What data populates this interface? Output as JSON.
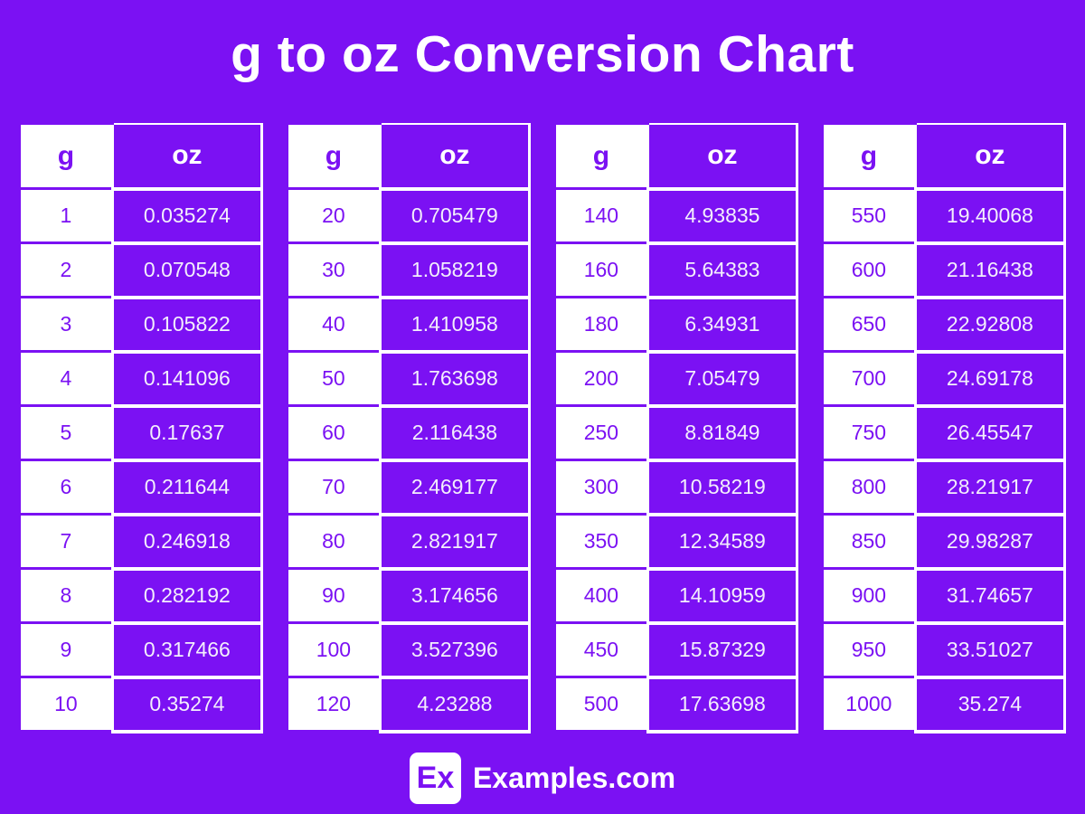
{
  "page": {
    "title": "g to oz Conversion Chart",
    "colors": {
      "purple": "#7b11f3",
      "white": "#ffffff",
      "value_text": "#f3eefc"
    }
  },
  "footer": {
    "logo_text": "Ex",
    "brand": "Examples.com"
  },
  "chart_data": {
    "type": "table",
    "title": "g to oz Conversion Chart",
    "unit_from": "g",
    "unit_to": "oz",
    "columns": [
      "g",
      "oz"
    ],
    "tables": [
      {
        "rows": [
          [
            "1",
            "0.035274"
          ],
          [
            "2",
            "0.070548"
          ],
          [
            "3",
            "0.105822"
          ],
          [
            "4",
            "0.141096"
          ],
          [
            "5",
            "0.17637"
          ],
          [
            "6",
            "0.211644"
          ],
          [
            "7",
            "0.246918"
          ],
          [
            "8",
            "0.282192"
          ],
          [
            "9",
            "0.317466"
          ],
          [
            "10",
            "0.35274"
          ]
        ]
      },
      {
        "rows": [
          [
            "20",
            "0.705479"
          ],
          [
            "30",
            "1.058219"
          ],
          [
            "40",
            "1.410958"
          ],
          [
            "50",
            "1.763698"
          ],
          [
            "60",
            "2.116438"
          ],
          [
            "70",
            "2.469177"
          ],
          [
            "80",
            "2.821917"
          ],
          [
            "90",
            "3.174656"
          ],
          [
            "100",
            "3.527396"
          ],
          [
            "120",
            "4.23288"
          ]
        ]
      },
      {
        "rows": [
          [
            "140",
            "4.93835"
          ],
          [
            "160",
            "5.64383"
          ],
          [
            "180",
            "6.34931"
          ],
          [
            "200",
            "7.05479"
          ],
          [
            "250",
            "8.81849"
          ],
          [
            "300",
            "10.58219"
          ],
          [
            "350",
            "12.34589"
          ],
          [
            "400",
            "14.10959"
          ],
          [
            "450",
            "15.87329"
          ],
          [
            "500",
            "17.63698"
          ]
        ]
      },
      {
        "rows": [
          [
            "550",
            "19.40068"
          ],
          [
            "600",
            "21.16438"
          ],
          [
            "650",
            "22.92808"
          ],
          [
            "700",
            "24.69178"
          ],
          [
            "750",
            "26.45547"
          ],
          [
            "800",
            "28.21917"
          ],
          [
            "850",
            "29.98287"
          ],
          [
            "900",
            "31.74657"
          ],
          [
            "950",
            "33.51027"
          ],
          [
            "1000",
            "35.274"
          ]
        ]
      }
    ]
  }
}
